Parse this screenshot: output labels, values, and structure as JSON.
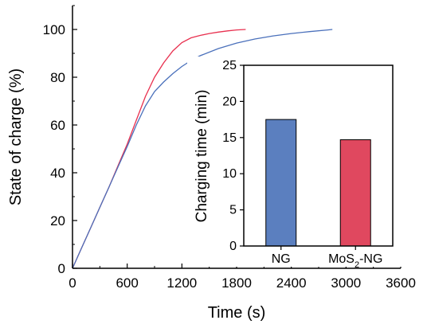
{
  "chart_data": [
    {
      "type": "line",
      "xlabel": "Time (s)",
      "ylabel": "State of charge (%)",
      "xlim": [
        0,
        3600
      ],
      "ylim": [
        0,
        110
      ],
      "xticks": [
        "0",
        "600",
        "1200",
        "1800",
        "2400",
        "3000",
        "3600"
      ],
      "yticks": [
        "0",
        "20",
        "40",
        "60",
        "80",
        "100"
      ],
      "grid": false,
      "series": [
        {
          "color": "#e8304f",
          "x": [
            0,
            100,
            200,
            300,
            400,
            500,
            600,
            700,
            800,
            900,
            1000,
            1100,
            1200,
            1300,
            1400,
            1500,
            1600,
            1700,
            1800,
            1900
          ],
          "y": [
            0,
            8.5,
            17,
            25.5,
            34,
            43,
            52,
            62,
            72,
            80,
            86,
            91,
            94.5,
            96.5,
            97.5,
            98.3,
            98.9,
            99.4,
            99.8,
            100
          ]
        },
        {
          "color": "#4a70bb",
          "x": [
            0,
            100,
            200,
            300,
            400,
            500,
            600,
            700,
            800,
            900,
            1000,
            1100,
            1200,
            1300,
            1400,
            1600,
            1800,
            2000,
            2200,
            2400,
            2600,
            2800,
            2850
          ],
          "y": [
            0,
            8.5,
            17,
            25.5,
            34,
            42.5,
            51,
            60,
            68,
            74,
            78,
            81.5,
            84.5,
            87,
            89,
            92,
            94.3,
            96,
            97.3,
            98.3,
            99.1,
            99.8,
            100
          ]
        }
      ]
    },
    {
      "type": "bar",
      "categories": [
        "NG",
        "MoS2-NG"
      ],
      "values": [
        17.5,
        14.7
      ],
      "colors": [
        "#5b7fbf",
        "#e0485f"
      ],
      "ylabel": "Charging time (min)",
      "ylim": [
        0,
        25
      ],
      "yticks": [
        "0",
        "5",
        "10",
        "15",
        "20",
        "25"
      ],
      "grid": false
    }
  ]
}
